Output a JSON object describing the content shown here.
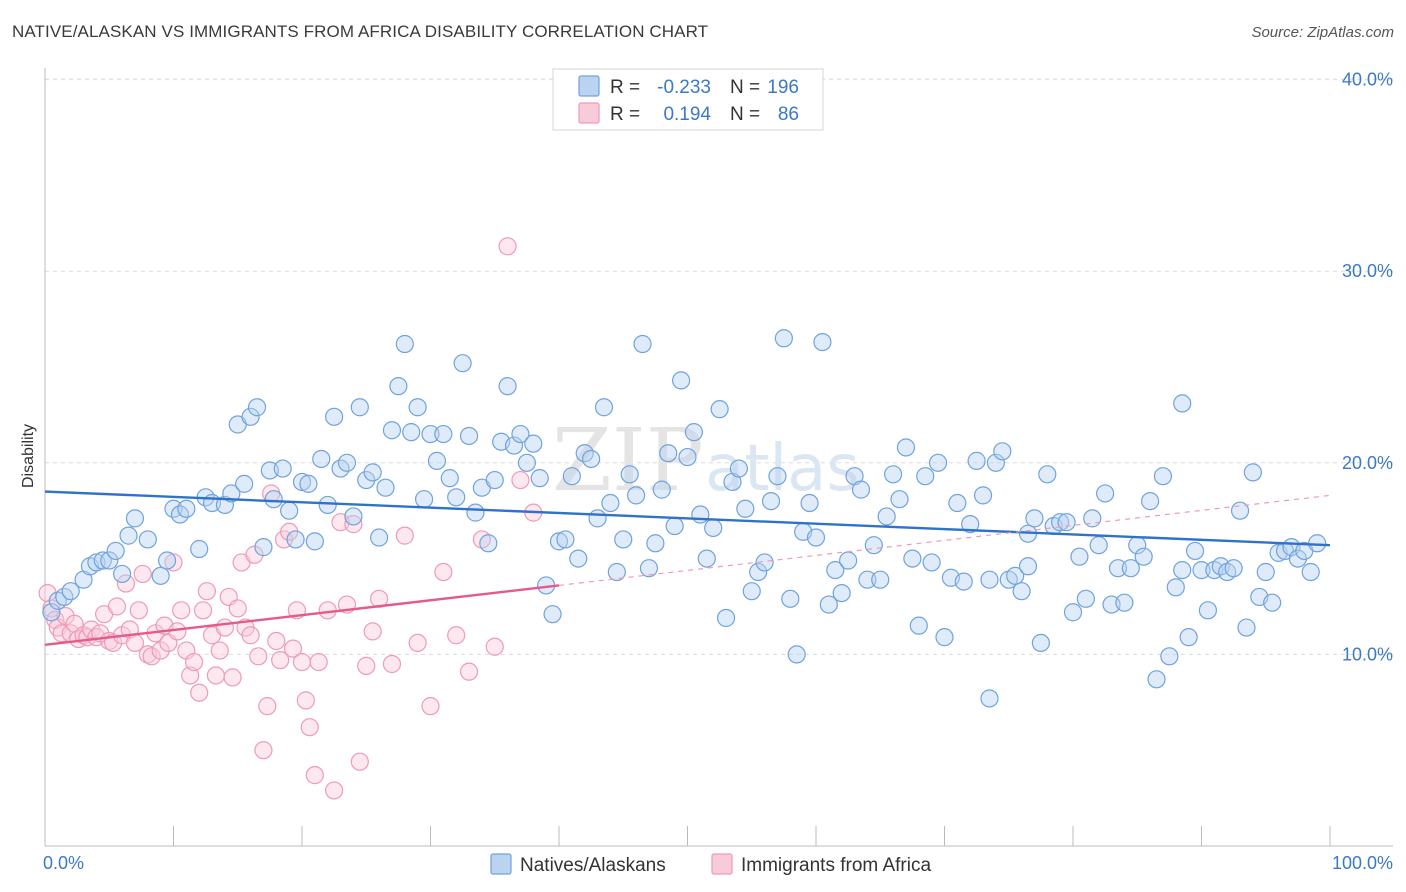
{
  "header": {
    "title": "NATIVE/ALASKAN VS IMMIGRANTS FROM AFRICA DISABILITY CORRELATION CHART",
    "source": "Source: ZipAtlas.com"
  },
  "watermark": {
    "zip": "ZIP",
    "atlas": "atlas"
  },
  "colors": {
    "blue": "#6fa3de",
    "blue_fill": "#b9d3f0",
    "blue_line": "#2f72cc",
    "pink": "#ef9ab6",
    "pink_fill": "#f8cbda",
    "pink_line": "#e45a8c",
    "axis_text": "#3b78c9"
  },
  "legend_top": {
    "rows": [
      {
        "r_label": "R =",
        "r_value": "-0.233",
        "n_label": "N =",
        "n_value": "196"
      },
      {
        "r_label": "R =",
        "r_value": "0.194",
        "n_label": "N =",
        "n_value": "86"
      }
    ]
  },
  "legend_bottom": {
    "items": [
      "Natives/Alaskans",
      "Immigrants from Africa"
    ]
  },
  "chart_data": {
    "type": "scatter",
    "title": "NATIVE/ALASKAN VS IMMIGRANTS FROM AFRICA DISABILITY CORRELATION CHART",
    "xlabel": "",
    "ylabel": "Disability",
    "xlim": [
      0,
      100
    ],
    "ylim": [
      0,
      42
    ],
    "x_tick_labels": [
      "0.0%",
      "100.0%"
    ],
    "y_ticks": [
      10,
      20,
      30,
      40
    ],
    "y_tick_labels": [
      "10.0%",
      "20.0%",
      "30.0%",
      "40.0%"
    ],
    "grid": true,
    "series": [
      {
        "name": "Natives/Alaskans",
        "r": -0.233,
        "n": 196,
        "trend": {
          "x": [
            0,
            100
          ],
          "y": [
            18.5,
            15.7
          ]
        },
        "points": [
          [
            0.5,
            12.2
          ],
          [
            1,
            12.8
          ],
          [
            1.5,
            13.0
          ],
          [
            2,
            13.3
          ],
          [
            3,
            13.9
          ],
          [
            3.5,
            14.6
          ],
          [
            4,
            14.8
          ],
          [
            4.5,
            14.9
          ],
          [
            5,
            14.9
          ],
          [
            5.5,
            15.4
          ],
          [
            6,
            14.2
          ],
          [
            6.5,
            16.2
          ],
          [
            7,
            17.1
          ],
          [
            8,
            16.0
          ],
          [
            9,
            14.1
          ],
          [
            9.5,
            14.9
          ],
          [
            10,
            17.6
          ],
          [
            10.5,
            17.3
          ],
          [
            11,
            17.6
          ],
          [
            12,
            15.5
          ],
          [
            12.5,
            18.2
          ],
          [
            13,
            17.9
          ],
          [
            14,
            17.8
          ],
          [
            14.5,
            18.4
          ],
          [
            15,
            22.0
          ],
          [
            15.5,
            18.9
          ],
          [
            16,
            22.4
          ],
          [
            16.5,
            22.9
          ],
          [
            17,
            15.6
          ],
          [
            17.5,
            19.6
          ],
          [
            17.8,
            18.1
          ],
          [
            18.5,
            19.7
          ],
          [
            19,
            17.5
          ],
          [
            19.5,
            16.0
          ],
          [
            20,
            19.0
          ],
          [
            20.5,
            18.9
          ],
          [
            21,
            15.9
          ],
          [
            21.5,
            20.2
          ],
          [
            22,
            17.8
          ],
          [
            22.5,
            22.4
          ],
          [
            23,
            19.7
          ],
          [
            23.5,
            20.0
          ],
          [
            24,
            17.2
          ],
          [
            24.5,
            22.9
          ],
          [
            25,
            19.1
          ],
          [
            25.5,
            19.5
          ],
          [
            26,
            16.1
          ],
          [
            26.5,
            18.7
          ],
          [
            27,
            21.7
          ],
          [
            27.5,
            24.0
          ],
          [
            28,
            26.2
          ],
          [
            28.5,
            21.6
          ],
          [
            29,
            22.9
          ],
          [
            29.5,
            18.1
          ],
          [
            30,
            21.5
          ],
          [
            30.5,
            20.1
          ],
          [
            31,
            21.5
          ],
          [
            31.5,
            19.2
          ],
          [
            32,
            18.2
          ],
          [
            32.5,
            25.2
          ],
          [
            33,
            21.4
          ],
          [
            33.5,
            17.4
          ],
          [
            34,
            18.7
          ],
          [
            34.5,
            15.8
          ],
          [
            35,
            19.1
          ],
          [
            35.5,
            21.1
          ],
          [
            36,
            24.0
          ],
          [
            36.5,
            20.9
          ],
          [
            37,
            21.5
          ],
          [
            37.5,
            20.0
          ],
          [
            38,
            21.0
          ],
          [
            38.5,
            19.2
          ],
          [
            39,
            13.6
          ],
          [
            39.5,
            12.1
          ],
          [
            40,
            15.9
          ],
          [
            40.5,
            16.0
          ],
          [
            41,
            19.3
          ],
          [
            41.5,
            15.0
          ],
          [
            42,
            20.5
          ],
          [
            42.5,
            20.2
          ],
          [
            43,
            17.1
          ],
          [
            43.5,
            22.9
          ],
          [
            44,
            17.9
          ],
          [
            44.5,
            14.3
          ],
          [
            45,
            16.0
          ],
          [
            45.5,
            19.4
          ],
          [
            46,
            18.3
          ],
          [
            46.5,
            26.2
          ],
          [
            47,
            14.5
          ],
          [
            47.5,
            15.8
          ],
          [
            48,
            18.6
          ],
          [
            48.5,
            20.5
          ],
          [
            49,
            16.7
          ],
          [
            49.5,
            24.3
          ],
          [
            50,
            20.3
          ],
          [
            50.5,
            21.6
          ],
          [
            51,
            17.3
          ],
          [
            51.5,
            15.0
          ],
          [
            52,
            16.6
          ],
          [
            52.5,
            22.8
          ],
          [
            53,
            11.9
          ],
          [
            53.5,
            19.0
          ],
          [
            54,
            19.7
          ],
          [
            54.5,
            17.6
          ],
          [
            55,
            13.3
          ],
          [
            55.5,
            14.3
          ],
          [
            56,
            14.8
          ],
          [
            56.5,
            18.0
          ],
          [
            57,
            19.3
          ],
          [
            57.5,
            26.5
          ],
          [
            58,
            12.9
          ],
          [
            58.5,
            10.0
          ],
          [
            59,
            16.4
          ],
          [
            59.5,
            17.9
          ],
          [
            60,
            16.1
          ],
          [
            60.5,
            26.3
          ],
          [
            61,
            12.6
          ],
          [
            61.5,
            14.4
          ],
          [
            62,
            13.2
          ],
          [
            62.5,
            14.9
          ],
          [
            63,
            19.3
          ],
          [
            63.5,
            18.6
          ],
          [
            64,
            13.9
          ],
          [
            64.5,
            15.7
          ],
          [
            65,
            13.9
          ],
          [
            65.5,
            17.2
          ],
          [
            66,
            19.4
          ],
          [
            66.5,
            18.1
          ],
          [
            67,
            20.8
          ],
          [
            67.5,
            15.0
          ],
          [
            68,
            11.5
          ],
          [
            68.5,
            19.3
          ],
          [
            69,
            14.8
          ],
          [
            69.5,
            20.0
          ],
          [
            70,
            10.9
          ],
          [
            70.5,
            14.0
          ],
          [
            71,
            17.9
          ],
          [
            71.5,
            13.8
          ],
          [
            72,
            16.8
          ],
          [
            72.5,
            20.1
          ],
          [
            73,
            18.3
          ],
          [
            73.5,
            13.9
          ],
          [
            74,
            20.0
          ],
          [
            74.5,
            20.6
          ],
          [
            75,
            13.9
          ],
          [
            75.5,
            14.1
          ],
          [
            76,
            13.3
          ],
          [
            76.5,
            16.3
          ],
          [
            77,
            17.1
          ],
          [
            77.5,
            10.6
          ],
          [
            78,
            19.4
          ],
          [
            78.5,
            16.7
          ],
          [
            79,
            16.9
          ],
          [
            79.5,
            16.9
          ],
          [
            80,
            12.2
          ],
          [
            80.5,
            15.1
          ],
          [
            81,
            12.9
          ],
          [
            81.5,
            17.1
          ],
          [
            82,
            15.7
          ],
          [
            82.5,
            18.4
          ],
          [
            83,
            12.6
          ],
          [
            83.5,
            14.5
          ],
          [
            84,
            12.7
          ],
          [
            84.5,
            14.5
          ],
          [
            85,
            15.7
          ],
          [
            85.5,
            15.1
          ],
          [
            86,
            18.0
          ],
          [
            86.5,
            8.7
          ],
          [
            87,
            19.3
          ],
          [
            87.5,
            9.9
          ],
          [
            88,
            13.5
          ],
          [
            88.5,
            14.4
          ],
          [
            89,
            10.9
          ],
          [
            89.5,
            15.4
          ],
          [
            90,
            14.4
          ],
          [
            90.5,
            12.3
          ],
          [
            91,
            14.4
          ],
          [
            91.5,
            14.6
          ],
          [
            92,
            14.3
          ],
          [
            92.5,
            14.5
          ],
          [
            93,
            17.5
          ],
          [
            93.5,
            11.4
          ],
          [
            94,
            19.5
          ],
          [
            94.5,
            13.0
          ],
          [
            95,
            14.3
          ],
          [
            95.5,
            12.7
          ],
          [
            96,
            15.3
          ],
          [
            96.5,
            15.4
          ],
          [
            97,
            15.6
          ],
          [
            97.5,
            15.0
          ],
          [
            98,
            15.4
          ],
          [
            98.5,
            14.3
          ],
          [
            99,
            15.8
          ],
          [
            73.5,
            7.7
          ],
          [
            76.5,
            14.6
          ],
          [
            88.5,
            23.1
          ]
        ]
      },
      {
        "name": "Immigrants from Africa",
        "r": 0.194,
        "n": 86,
        "trend": {
          "x": [
            0,
            40
          ],
          "y": [
            10.5,
            13.6
          ]
        },
        "trend_dashed": {
          "x": [
            40,
            100
          ],
          "y": [
            13.6,
            18.3
          ]
        },
        "points": [
          [
            0.2,
            13.2
          ],
          [
            0.5,
            12.4
          ],
          [
            0.8,
            11.8
          ],
          [
            1,
            11.4
          ],
          [
            1.3,
            11.1
          ],
          [
            1.6,
            12.0
          ],
          [
            2,
            11.1
          ],
          [
            2.3,
            11.6
          ],
          [
            2.6,
            10.8
          ],
          [
            3,
            11.0
          ],
          [
            3.3,
            10.9
          ],
          [
            3.6,
            11.3
          ],
          [
            4,
            10.9
          ],
          [
            4.3,
            11.1
          ],
          [
            4.6,
            12.1
          ],
          [
            5,
            10.7
          ],
          [
            5.3,
            10.6
          ],
          [
            5.6,
            12.5
          ],
          [
            6,
            11.0
          ],
          [
            6.3,
            13.7
          ],
          [
            6.6,
            11.3
          ],
          [
            7,
            10.6
          ],
          [
            7.3,
            12.3
          ],
          [
            7.6,
            14.2
          ],
          [
            8,
            10.0
          ],
          [
            8.3,
            9.9
          ],
          [
            8.6,
            11.1
          ],
          [
            9,
            10.2
          ],
          [
            9.3,
            11.5
          ],
          [
            9.6,
            10.6
          ],
          [
            10,
            14.8
          ],
          [
            10.3,
            11.2
          ],
          [
            10.6,
            12.3
          ],
          [
            11,
            10.2
          ],
          [
            11.3,
            8.9
          ],
          [
            11.6,
            9.6
          ],
          [
            12,
            8.0
          ],
          [
            12.3,
            12.3
          ],
          [
            12.6,
            13.3
          ],
          [
            13,
            11.0
          ],
          [
            13.3,
            8.9
          ],
          [
            13.6,
            10.2
          ],
          [
            14,
            11.4
          ],
          [
            14.3,
            13.0
          ],
          [
            14.6,
            8.8
          ],
          [
            15,
            12.4
          ],
          [
            15.3,
            14.8
          ],
          [
            15.6,
            11.4
          ],
          [
            16,
            11.0
          ],
          [
            16.3,
            15.2
          ],
          [
            16.6,
            9.9
          ],
          [
            17,
            5.0
          ],
          [
            17.3,
            7.3
          ],
          [
            17.6,
            18.4
          ],
          [
            18,
            10.7
          ],
          [
            18.3,
            9.7
          ],
          [
            18.6,
            16.0
          ],
          [
            19,
            16.4
          ],
          [
            19.3,
            10.3
          ],
          [
            19.6,
            12.3
          ],
          [
            20,
            9.6
          ],
          [
            20.3,
            7.6
          ],
          [
            20.6,
            6.2
          ],
          [
            21,
            3.7
          ],
          [
            21.3,
            9.6
          ],
          [
            22,
            12.3
          ],
          [
            22.5,
            2.9
          ],
          [
            23,
            16.9
          ],
          [
            23.5,
            12.6
          ],
          [
            24,
            16.8
          ],
          [
            24.5,
            4.4
          ],
          [
            25,
            9.4
          ],
          [
            25.5,
            11.2
          ],
          [
            26,
            12.9
          ],
          [
            27,
            9.5
          ],
          [
            28,
            16.2
          ],
          [
            29,
            10.6
          ],
          [
            30,
            7.3
          ],
          [
            31,
            14.3
          ],
          [
            32,
            11.0
          ],
          [
            33,
            9.1
          ],
          [
            34,
            16.0
          ],
          [
            35,
            10.4
          ],
          [
            36,
            31.3
          ],
          [
            37,
            19.1
          ],
          [
            38,
            17.4
          ]
        ]
      }
    ]
  }
}
